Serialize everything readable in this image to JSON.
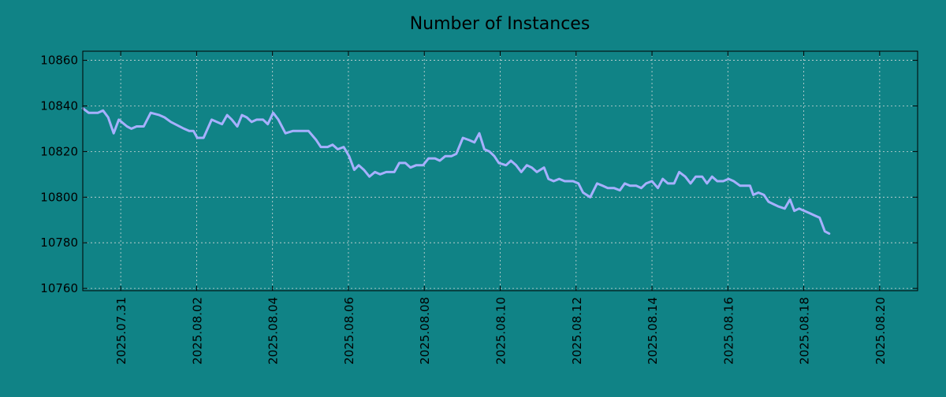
{
  "colors": {
    "background": "#108386",
    "line": "#a7b0ff",
    "axis": "#000000",
    "grid": "#cfd8d8"
  },
  "chart_data": {
    "type": "line",
    "title": "Number of Instances",
    "xlabel": "",
    "ylabel": "",
    "x_tick_labels": [
      "2025.07.31",
      "2025.08.02",
      "2025.08.04",
      "2025.08.06",
      "2025.08.08",
      "2025.08.10",
      "2025.08.12",
      "2025.08.14",
      "2025.08.16",
      "2025.08.18",
      "2025.08.20"
    ],
    "y_tick_labels": [
      "10760",
      "10780",
      "10800",
      "10820",
      "10840",
      "10860"
    ],
    "y_ticks": [
      10760,
      10780,
      10800,
      10820,
      10840,
      10860
    ],
    "ylim": [
      10759,
      10864
    ],
    "xlim": [
      "2025.07.30 00:00",
      "2025.08.21 00:00"
    ],
    "grid": true,
    "legend": "none",
    "series": [
      {
        "values": [
          [
            "2025.07.30 00:00",
            10839
          ],
          [
            "2025.07.30 03:42",
            10837
          ],
          [
            "2025.07.30 09:32",
            10837
          ],
          [
            "2025.07.30 12:48",
            10838
          ],
          [
            "2025.07.30 16:03",
            10835
          ],
          [
            "2025.07.30 19:33",
            10828
          ],
          [
            "2025.07.30 22:48",
            10834
          ],
          [
            "2025.07.31 03:58",
            10831
          ],
          [
            "2025.07.31 06:47",
            10830
          ],
          [
            "2025.07.31 10:03",
            10831
          ],
          [
            "2025.07.31 14:31",
            10831
          ],
          [
            "2025.07.31 19:00",
            10837
          ],
          [
            "2025.08.01 00:25",
            10836
          ],
          [
            "2025.08.01 03:42",
            10835
          ],
          [
            "2025.08.01 07:43",
            10833
          ],
          [
            "2025.08.01 16:03",
            10830
          ],
          [
            "2025.08.01 19:18",
            10829
          ],
          [
            "2025.08.01 22:03",
            10829
          ],
          [
            "2025.08.02 00:25",
            10826
          ],
          [
            "2025.08.02 04:24",
            10826
          ],
          [
            "2025.08.02 09:32",
            10834
          ],
          [
            "2025.08.02 16:03",
            10832
          ],
          [
            "2025.08.02 19:18",
            10836
          ],
          [
            "2025.08.02 22:18",
            10834
          ],
          [
            "2025.08.03 01:43",
            10831
          ],
          [
            "2025.08.03 04:39",
            10836
          ],
          [
            "2025.08.03 07:43",
            10835
          ],
          [
            "2025.08.03 10:48",
            10833
          ],
          [
            "2025.08.03 14:00",
            10834
          ],
          [
            "2025.08.03 18:01",
            10834
          ],
          [
            "2025.08.03 21:02",
            10832
          ],
          [
            "2025.08.04 00:25",
            10837
          ],
          [
            "2025.08.04 03:42",
            10834
          ],
          [
            "2025.08.04 08:10",
            10828
          ],
          [
            "2025.08.04 12:48",
            10829
          ],
          [
            "2025.08.04 22:48",
            10829
          ],
          [
            "2025.08.05 03:42",
            10825
          ],
          [
            "2025.08.05 06:30",
            10822
          ],
          [
            "2025.08.05 10:48",
            10822
          ],
          [
            "2025.08.05 14:00",
            10823
          ],
          [
            "2025.08.05 17:15",
            10821
          ],
          [
            "2025.08.05 21:02",
            10822
          ],
          [
            "2025.08.06 00:25",
            10818
          ],
          [
            "2025.08.06 03:42",
            10812
          ],
          [
            "2025.08.06 06:30",
            10814
          ],
          [
            "2025.08.06 09:48",
            10812
          ],
          [
            "2025.08.06 13:18",
            10809
          ],
          [
            "2025.08.06 16:47",
            10811
          ],
          [
            "2025.08.06 20:00",
            10810
          ],
          [
            "2025.08.06 23:58",
            10811
          ],
          [
            "2025.08.07 05:03",
            10811
          ],
          [
            "2025.08.07 08:10",
            10815
          ],
          [
            "2025.08.07 12:00",
            10815
          ],
          [
            "2025.08.07 15:17",
            10813
          ],
          [
            "2025.08.07 18:47",
            10814
          ],
          [
            "2025.08.07 23:10",
            10814
          ],
          [
            "2025.08.08 02:40",
            10817
          ],
          [
            "2025.08.08 06:47",
            10817
          ],
          [
            "2025.08.08 09:48",
            10816
          ],
          [
            "2025.08.08 13:18",
            10818
          ],
          [
            "2025.08.08 17:15",
            10818
          ],
          [
            "2025.08.08 20:15",
            10819
          ],
          [
            "2025.08.09 00:25",
            10826
          ],
          [
            "2025.08.09 04:24",
            10825
          ],
          [
            "2025.08.09 07:43",
            10824
          ],
          [
            "2025.08.09 10:48",
            10828
          ],
          [
            "2025.08.09 14:00",
            10821
          ],
          [
            "2025.08.09 17:15",
            10820
          ],
          [
            "2025.08.09 20:15",
            10818
          ],
          [
            "2025.08.09 23:10",
            10815
          ],
          [
            "2025.08.10 03:42",
            10814
          ],
          [
            "2025.08.10 06:47",
            10816
          ],
          [
            "2025.08.10 10:03",
            10814
          ],
          [
            "2025.08.10 13:18",
            10811
          ],
          [
            "2025.08.10 16:47",
            10814
          ],
          [
            "2025.08.10 20:00",
            10813
          ],
          [
            "2025.08.10 23:10",
            10811
          ],
          [
            "2025.08.11 03:42",
            10813
          ],
          [
            "2025.08.11 06:30",
            10808
          ],
          [
            "2025.08.11 09:48",
            10807
          ],
          [
            "2025.08.11 13:18",
            10808
          ],
          [
            "2025.08.11 16:47",
            10807
          ],
          [
            "2025.08.11 22:03",
            10807
          ],
          [
            "2025.08.12 01:30",
            10806
          ],
          [
            "2025.08.12 04:24",
            10802
          ],
          [
            "2025.08.12 08:55",
            10800
          ],
          [
            "2025.08.12 13:18",
            10806
          ],
          [
            "2025.08.12 16:47",
            10805
          ],
          [
            "2025.08.12 20:00",
            10804
          ],
          [
            "2025.08.12 23:58",
            10804
          ],
          [
            "2025.08.13 03:42",
            10803
          ],
          [
            "2025.08.13 06:47",
            10806
          ],
          [
            "2025.08.13 10:03",
            10805
          ],
          [
            "2025.08.13 14:00",
            10805
          ],
          [
            "2025.08.13 17:15",
            10804
          ],
          [
            "2025.08.13 20:15",
            10806
          ],
          [
            "2025.08.13 23:58",
            10807
          ],
          [
            "2025.08.14 03:42",
            10804
          ],
          [
            "2025.08.14 06:47",
            10808
          ],
          [
            "2025.08.14 10:03",
            10806
          ],
          [
            "2025.08.14 14:00",
            10806
          ],
          [
            "2025.08.14 17:15",
            10811
          ],
          [
            "2025.08.14 21:02",
            10809
          ],
          [
            "2025.08.15 00:25",
            10806
          ],
          [
            "2025.08.15 03:42",
            10809
          ],
          [
            "2025.08.15 07:43",
            10809
          ],
          [
            "2025.08.15 10:48",
            10806
          ],
          [
            "2025.08.15 14:00",
            10809
          ],
          [
            "2025.08.15 17:15",
            10807
          ],
          [
            "2025.08.15 21:02",
            10807
          ],
          [
            "2025.08.16 00:25",
            10808
          ],
          [
            "2025.08.16 03:42",
            10807
          ],
          [
            "2025.08.16 07:43",
            10805
          ],
          [
            "2025.08.16 14:00",
            10805
          ],
          [
            "2025.08.16 16:03",
            10801
          ],
          [
            "2025.08.16 19:18",
            10802
          ],
          [
            "2025.08.16 22:48",
            10801
          ],
          [
            "2025.08.17 01:43",
            10798
          ],
          [
            "2025.08.17 04:39",
            10797
          ],
          [
            "2025.08.17 07:43",
            10796
          ],
          [
            "2025.08.17 12:00",
            10795
          ],
          [
            "2025.08.17 15:17",
            10799
          ],
          [
            "2025.08.17 18:01",
            10794
          ],
          [
            "2025.08.17 21:02",
            10795
          ],
          [
            "2025.08.18 00:25",
            10794
          ],
          [
            "2025.08.18 03:42",
            10793
          ],
          [
            "2025.08.18 06:47",
            10792
          ],
          [
            "2025.08.18 10:03",
            10791
          ],
          [
            "2025.08.18 13:18",
            10785
          ],
          [
            "2025.08.18 16:03",
            10784
          ]
        ]
      }
    ]
  }
}
